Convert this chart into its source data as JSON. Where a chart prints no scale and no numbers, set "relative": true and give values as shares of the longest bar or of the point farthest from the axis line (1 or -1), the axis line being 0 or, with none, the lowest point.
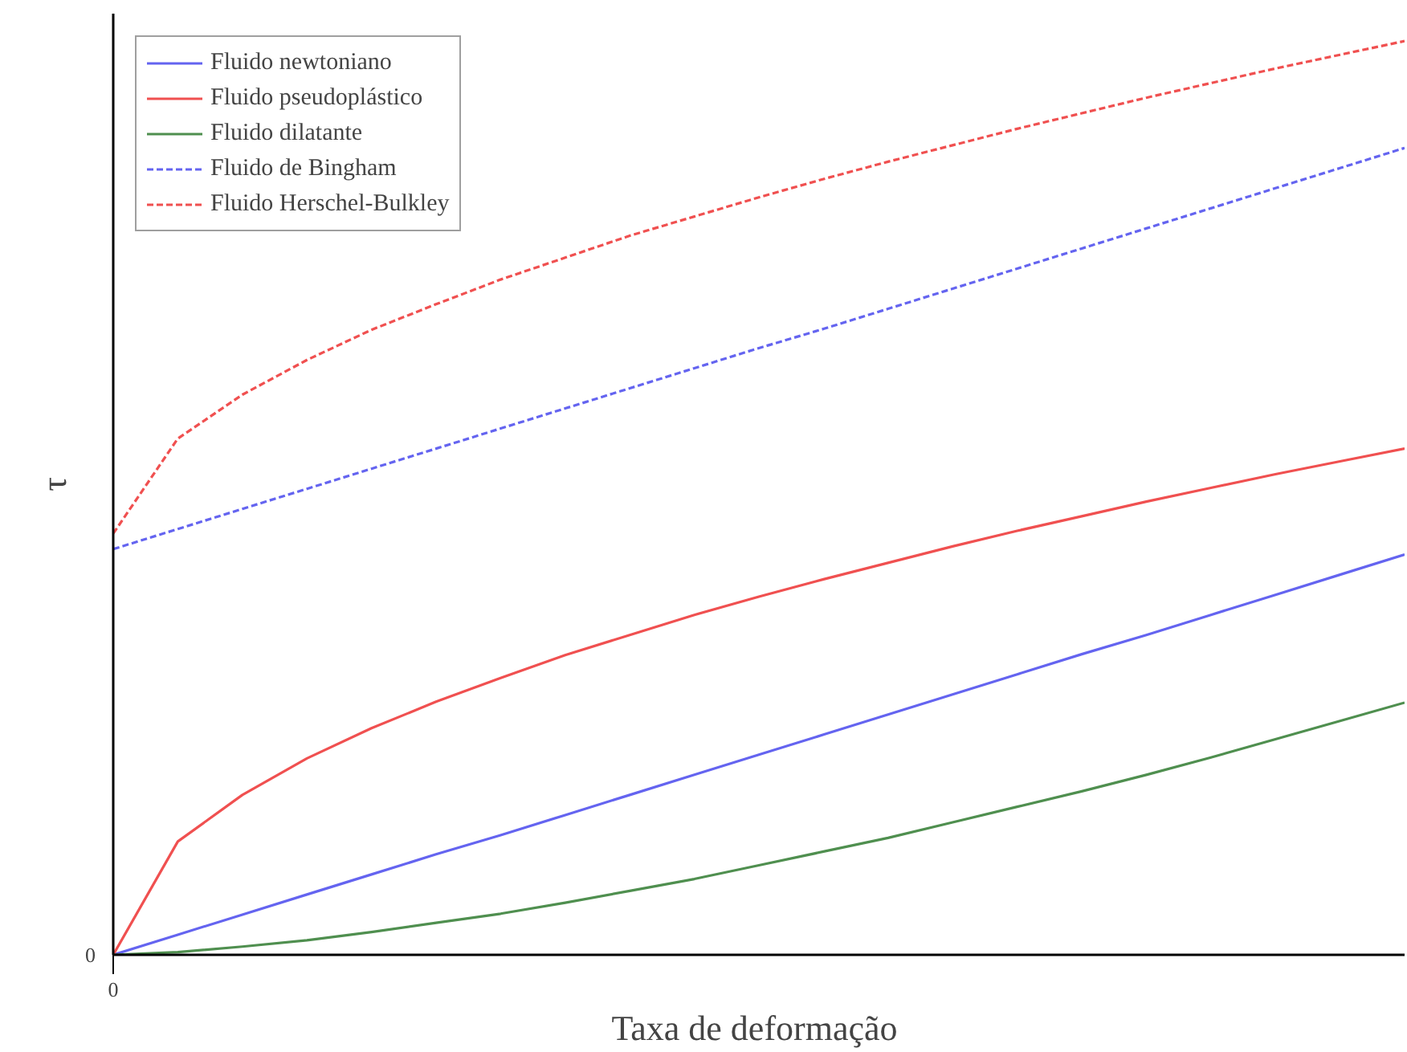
{
  "chart_data": {
    "type": "line",
    "relative": true,
    "xlabel": "Taxa  de deformação",
    "ylabel": "τ",
    "categories": [
      null,
      null,
      null,
      null,
      null,
      null,
      null,
      null,
      null,
      null,
      null,
      null,
      null,
      null,
      null,
      null,
      null,
      null,
      null,
      null,
      null
    ],
    "legend": "top left",
    "marker": "none",
    "annotations": [
      "0",
      "0"
    ],
    "series": [
      {
        "name": "Fluido newtoniano",
        "color": "#6464f0",
        "line_style": "solid",
        "values": [
          0,
          0.022,
          0.044,
          0.066,
          0.088,
          0.11,
          0.131,
          0.153,
          0.175,
          0.197,
          0.219,
          0.241,
          0.263,
          0.285,
          0.307,
          0.329,
          0.35,
          0.372,
          0.394,
          0.416,
          0.438
        ]
      },
      {
        "name": "Fluido pseudoplástico",
        "color": "#f05050",
        "line_style": "solid",
        "values": [
          0,
          0.124,
          0.175,
          0.215,
          0.248,
          0.277,
          0.303,
          0.328,
          0.35,
          0.372,
          0.392,
          0.411,
          0.429,
          0.447,
          0.464,
          0.48,
          0.496,
          0.511,
          0.526,
          0.54,
          0.554
        ]
      },
      {
        "name": "Fluido dilatante",
        "color": "#4f8f4f",
        "line_style": "solid",
        "values": [
          0,
          0.003,
          0.009,
          0.016,
          0.025,
          0.035,
          0.045,
          0.057,
          0.07,
          0.083,
          0.098,
          0.113,
          0.128,
          0.145,
          0.162,
          0.179,
          0.197,
          0.216,
          0.236,
          0.256,
          0.276
        ]
      },
      {
        "name": "Fluido de Bingham",
        "color": "#6464f0",
        "line_style": "dashed",
        "values": [
          0.444,
          0.466,
          0.488,
          0.51,
          0.532,
          0.554,
          0.576,
          0.598,
          0.62,
          0.642,
          0.664,
          0.685,
          0.707,
          0.729,
          0.751,
          0.773,
          0.795,
          0.817,
          0.839,
          0.861,
          0.883
        ]
      },
      {
        "name": "Fluido Herschel-Bulkley",
        "color": "#f05050",
        "line_style": "dashed",
        "values": [
          0.461,
          0.565,
          0.613,
          0.651,
          0.684,
          0.712,
          0.739,
          0.763,
          0.787,
          0.808,
          0.829,
          0.849,
          0.868,
          0.886,
          0.904,
          0.921,
          0.938,
          0.954,
          0.97,
          0.985,
          1.0
        ]
      }
    ]
  }
}
